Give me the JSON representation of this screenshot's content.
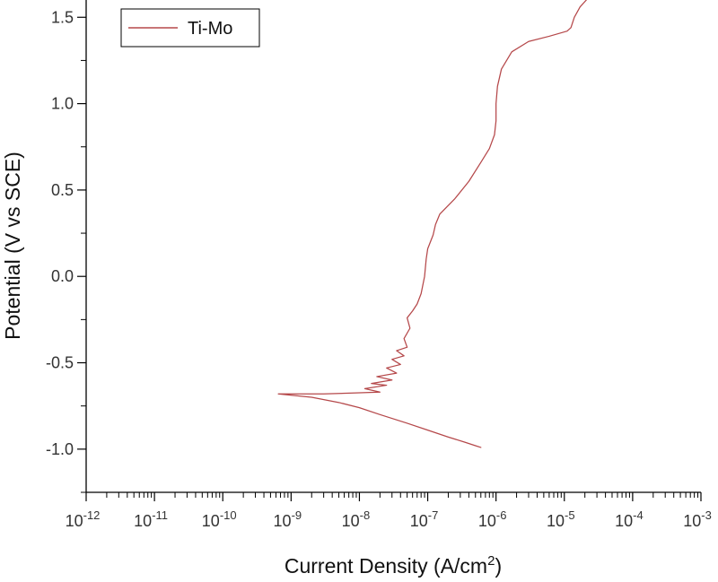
{
  "chart_data": {
    "type": "line",
    "xscale": "log",
    "xlabel_main": "Current Density (A/cm",
    "xlabel_sup": "2",
    "xlabel_close": ")",
    "ylabel": "Potential (V vs SCE)",
    "xlim": [
      1e-12,
      0.001
    ],
    "ylim": [
      -1.25,
      1.6
    ],
    "x_tick_labels": [
      {
        "base": "10",
        "exp": "-12"
      },
      {
        "base": "10",
        "exp": "-11"
      },
      {
        "base": "10",
        "exp": "-10"
      },
      {
        "base": "10",
        "exp": "-9"
      },
      {
        "base": "10",
        "exp": "-8"
      },
      {
        "base": "10",
        "exp": "-7"
      },
      {
        "base": "10",
        "exp": "-6"
      },
      {
        "base": "10",
        "exp": "-5"
      },
      {
        "base": "10",
        "exp": "-4"
      },
      {
        "base": "10",
        "exp": "-3"
      }
    ],
    "y_ticks": [
      -1.0,
      -0.5,
      0.0,
      0.5,
      1.0,
      1.5
    ],
    "y_tick_labels": [
      "-1.0",
      "-0.5",
      "0.0",
      "0.5",
      "1.0",
      "1.5"
    ],
    "legend_placement": "top-left",
    "grid": false,
    "series": [
      {
        "name": "Ti-Mo",
        "color": "#b5484a",
        "x": [
          6e-07,
          5e-07,
          3.5e-07,
          2e-07,
          1e-07,
          5e-08,
          2e-08,
          1e-08,
          5e-09,
          2e-09,
          6.5e-10,
          3e-09,
          8e-09,
          2e-08,
          1.2e-08,
          2.5e-08,
          1.5e-08,
          3e-08,
          1.8e-08,
          3.5e-08,
          2.5e-08,
          4e-08,
          3e-08,
          4.5e-08,
          3.5e-08,
          5e-08,
          4.5e-08,
          5.5e-08,
          5e-08,
          6e-08,
          7e-08,
          8e-08,
          9e-08,
          9.5e-08,
          1e-07,
          1.2e-07,
          1.3e-07,
          1.5e-07,
          2.5e-07,
          4e-07,
          6e-07,
          8e-07,
          9.5e-07,
          1e-06,
          1e-06,
          1.05e-06,
          1.2e-06,
          1.7e-06,
          3e-06,
          6e-06,
          1.1e-05,
          1.25e-05,
          1.4e-05,
          1.7e-05,
          2.1e-05
        ],
        "y": [
          -0.99,
          -0.98,
          -0.96,
          -0.93,
          -0.89,
          -0.85,
          -0.8,
          -0.76,
          -0.73,
          -0.7,
          -0.68,
          -0.68,
          -0.675,
          -0.67,
          -0.65,
          -0.63,
          -0.62,
          -0.6,
          -0.58,
          -0.56,
          -0.53,
          -0.51,
          -0.48,
          -0.46,
          -0.43,
          -0.41,
          -0.36,
          -0.3,
          -0.24,
          -0.2,
          -0.16,
          -0.1,
          0.0,
          0.1,
          0.16,
          0.24,
          0.3,
          0.36,
          0.45,
          0.55,
          0.66,
          0.74,
          0.82,
          0.9,
          1.0,
          1.1,
          1.2,
          1.3,
          1.36,
          1.39,
          1.42,
          1.44,
          1.5,
          1.56,
          1.6
        ]
      }
    ]
  }
}
